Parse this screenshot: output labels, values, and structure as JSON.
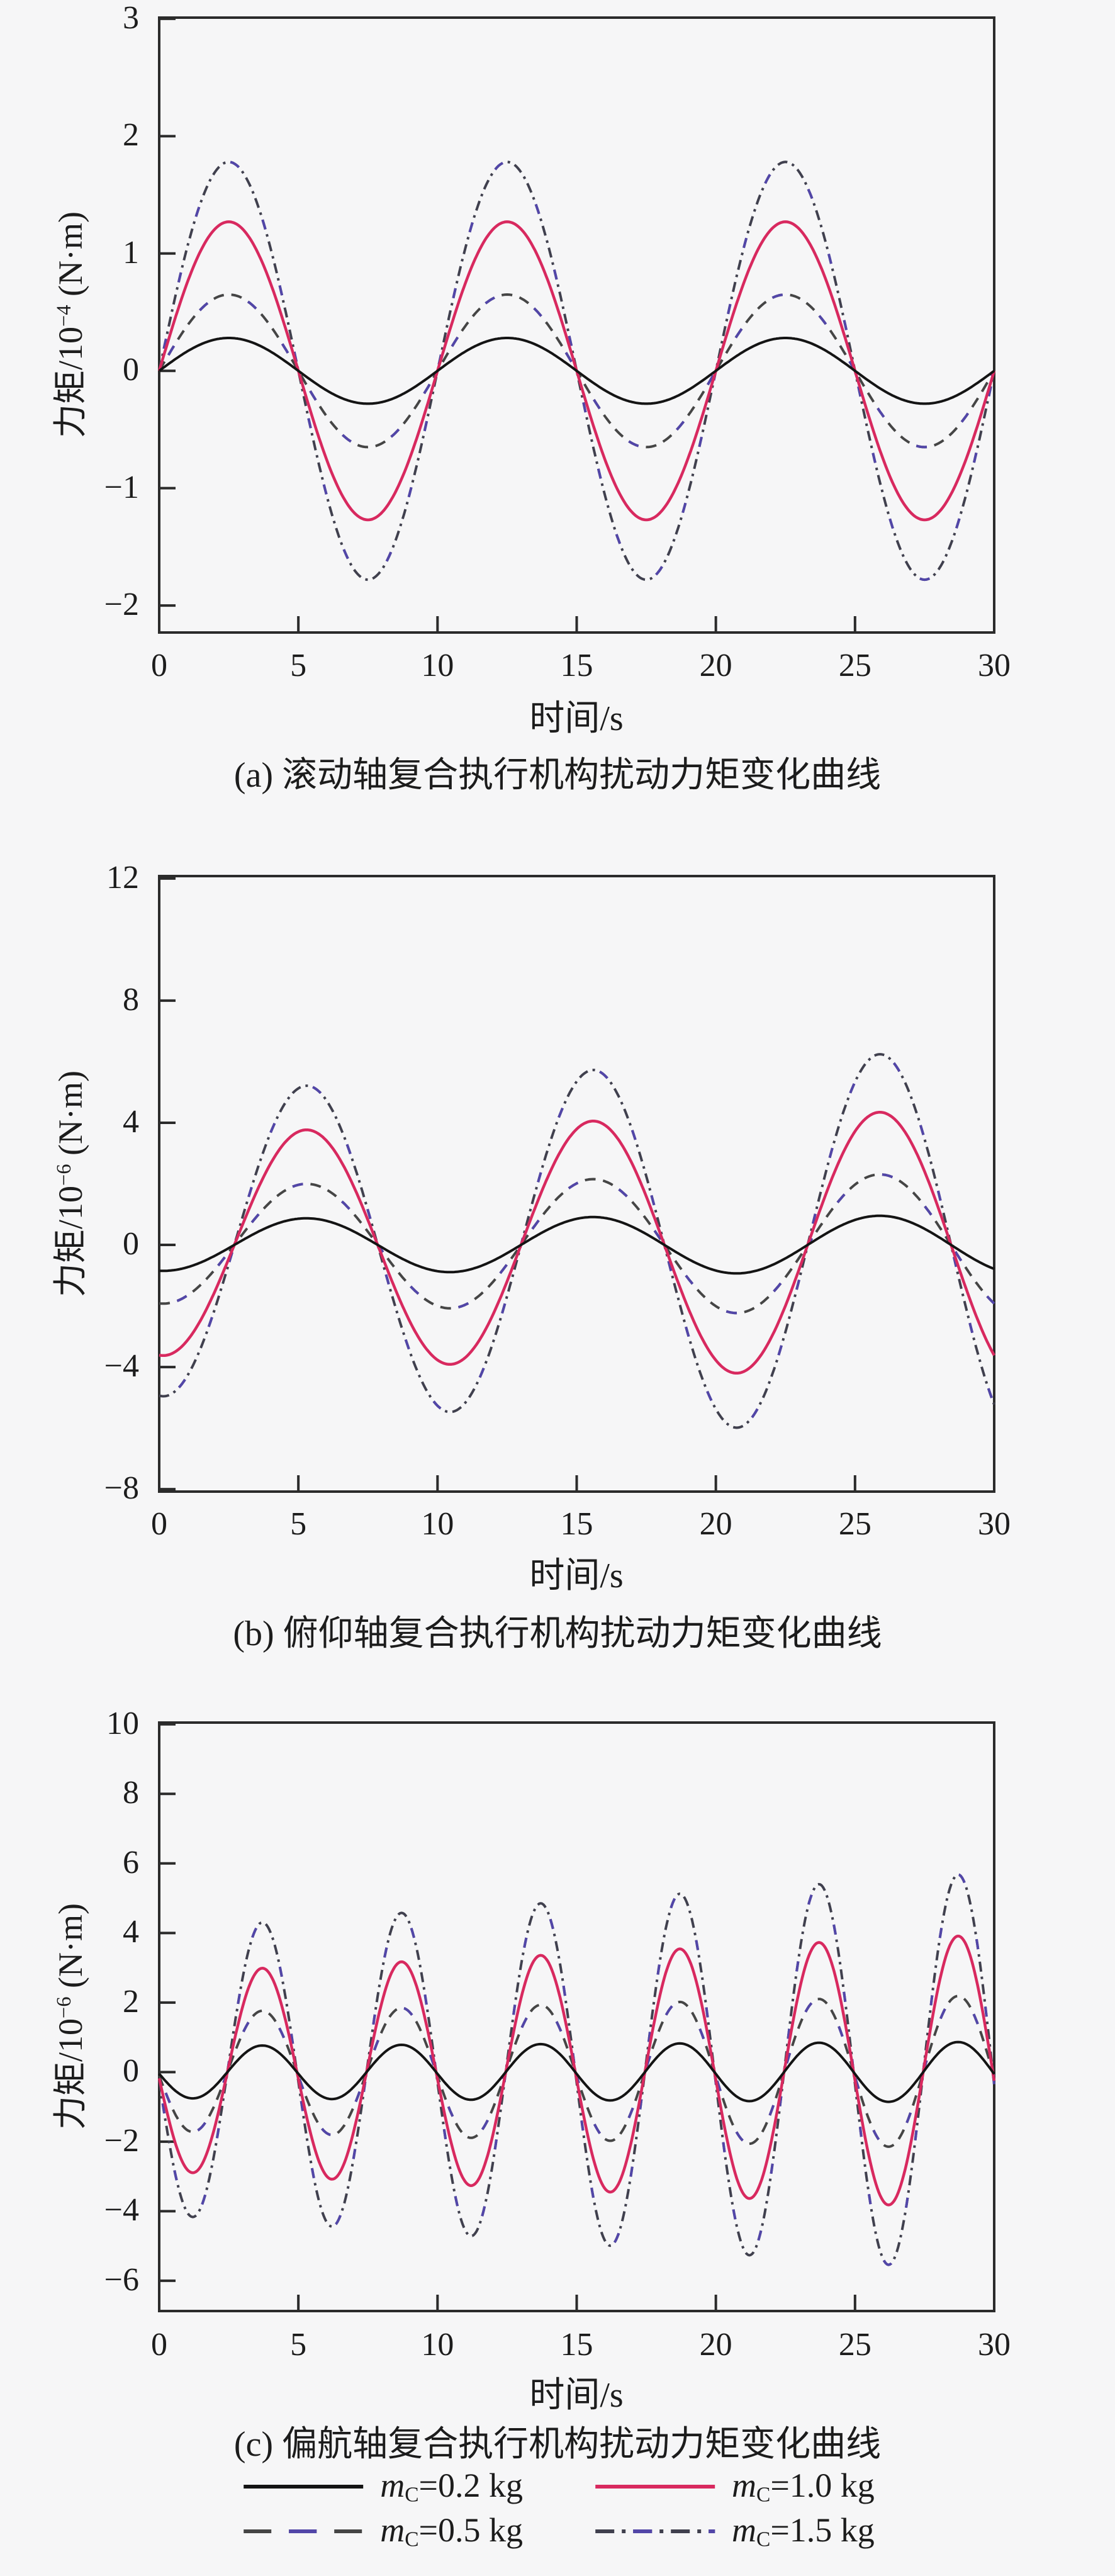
{
  "page": {
    "background": "#f6f6f7",
    "frame_color": "#2b2b2b",
    "text_color": "#1c1c1c"
  },
  "chart_data": [
    {
      "type": "line",
      "caption": "(a) 滚动轴复合执行机构扰动力矩变化曲线",
      "xlabel": "时间/s",
      "ylabel": {
        "base": "力矩/10",
        "exp": "−4",
        "unit": " (N·m)"
      },
      "xlim": [
        0,
        30
      ],
      "x_ticks": [
        0,
        5,
        10,
        15,
        20,
        25,
        30
      ],
      "y_ticks": [
        3,
        2,
        1,
        0,
        -1,
        -2
      ],
      "ylim": [
        -2.23,
        3.01
      ],
      "grid": false,
      "note": "sinusoidal disturbance torque, period 10 s, constant amplitude; y = A*sin(2*pi*(t-t0)/T)",
      "series": [
        {
          "name": "mC=0.2 kg",
          "style": "solid",
          "color": "#141414",
          "width": 4.0,
          "model": {
            "form": "sin",
            "sign": 1,
            "A0": 0.28,
            "k": 0,
            "T": 10,
            "t0": 0
          },
          "peak": 0.28,
          "trough": -0.28
        },
        {
          "name": "mC=0.5 kg",
          "style": "dashed",
          "color": "#454545",
          "accent": "#5246a8",
          "width": 4.0,
          "model": {
            "form": "sin",
            "sign": 1,
            "A0": 0.65,
            "k": 0,
            "T": 10,
            "t0": 0
          },
          "peak": 0.65,
          "trough": -0.65
        },
        {
          "name": "mC=1.0 kg",
          "style": "solid",
          "color": "#d8295f",
          "width": 4.5,
          "model": {
            "form": "sin",
            "sign": 1,
            "A0": 1.27,
            "k": 0,
            "T": 10,
            "t0": 0
          },
          "peak": 1.27,
          "trough": -1.27
        },
        {
          "name": "mC=1.5 kg",
          "style": "dashdot",
          "color": "#40404e",
          "accent": "#5246a8",
          "width": 4.0,
          "model": {
            "form": "sin",
            "sign": 1,
            "A0": 1.78,
            "k": 0,
            "T": 10,
            "t0": 0
          },
          "peak": 1.78,
          "trough": -1.78
        }
      ]
    },
    {
      "type": "line",
      "caption": "(b) 俯仰轴复合执行机构扰动力矩变化曲线",
      "xlabel": "时间/s",
      "ylabel": {
        "base": "力矩/10",
        "exp": "−6",
        "unit": " (N·m)"
      },
      "xlim": [
        0,
        30
      ],
      "x_ticks": [
        0,
        5,
        10,
        15,
        20,
        25,
        30
      ],
      "y_ticks": [
        12,
        8,
        4,
        0,
        -4,
        -8
      ],
      "ylim": [
        -8.08,
        12.08
      ],
      "grid": false,
      "note": "starts near minimum at t=0, peaks near t=5,15,25; amplitude grows slowly; y = -A(t)*cos(2*pi*(t-t0)/T), A(t)=A0+k*t",
      "series": [
        {
          "name": "mC=0.2 kg",
          "style": "solid",
          "color": "#141414",
          "width": 4.0,
          "model": {
            "form": "cos",
            "sign": -1,
            "A0": 0.85,
            "k": 0.004,
            "T": 10.3,
            "t0": 0.125
          },
          "peak": 0.9,
          "trough": -0.95
        },
        {
          "name": "mC=0.5 kg",
          "style": "dashed",
          "color": "#454545",
          "accent": "#5246a8",
          "width": 4.0,
          "model": {
            "form": "cos",
            "sign": -1,
            "A0": 1.92,
            "k": 0.015,
            "T": 10.3,
            "t0": 0.125
          },
          "peak": 2.2,
          "trough": -2.3
        },
        {
          "name": "mC=1.0 kg",
          "style": "solid",
          "color": "#d8295f",
          "width": 4.5,
          "model": {
            "form": "cos",
            "sign": -1,
            "A0": 3.62,
            "k": 0.028,
            "T": 10.3,
            "t0": 0.125
          },
          "peak": 4.3,
          "trough": -4.5
        },
        {
          "name": "mC=1.5 kg",
          "style": "dashdot",
          "color": "#40404e",
          "accent": "#5246a8",
          "width": 4.0,
          "model": {
            "form": "cos",
            "sign": -1,
            "A0": 4.95,
            "k": 0.05,
            "T": 10.3,
            "t0": 0.125
          },
          "peak": 6.3,
          "trough": -6.4
        }
      ]
    },
    {
      "type": "line",
      "caption": "(c) 偏航轴复合执行机构扰动力矩变化曲线",
      "xlabel": "时间/s",
      "ylabel": {
        "base": "力矩/10",
        "exp": "−6",
        "unit": " (N·m)"
      },
      "xlim": [
        0,
        30
      ],
      "x_ticks": [
        0,
        5,
        10,
        15,
        20,
        25,
        30
      ],
      "y_ticks": [
        10,
        8,
        6,
        4,
        2,
        0,
        -2,
        -4,
        -6
      ],
      "ylim": [
        -6.87,
        10.05
      ],
      "grid": false,
      "note": "period 5 s, dips first (trough ~t=1.2, peak ~t=3.7), amplitude grows slowly; y = -A(t)*sin(2*pi*(t-t0)/T), A(t)=A0+k*t",
      "series": [
        {
          "name": "mC=0.2 kg",
          "style": "solid",
          "color": "#141414",
          "width": 4.0,
          "model": {
            "form": "sin",
            "sign": -1,
            "A0": 0.75,
            "k": 0.004,
            "T": 5,
            "t0": -0.05
          },
          "peak": 0.85,
          "trough": -0.85
        },
        {
          "name": "mC=0.5 kg",
          "style": "dashed",
          "color": "#454545",
          "accent": "#5246a8",
          "width": 4.0,
          "model": {
            "form": "sin",
            "sign": -1,
            "A0": 1.7,
            "k": 0.017,
            "T": 5,
            "t0": -0.05
          },
          "peak": 2.2,
          "trough": -2.1
        },
        {
          "name": "mC=1.0 kg",
          "style": "solid",
          "color": "#d8295f",
          "width": 4.5,
          "model": {
            "form": "sin",
            "sign": -1,
            "A0": 2.85,
            "k": 0.037,
            "T": 5,
            "t0": -0.05
          },
          "peak": 3.9,
          "trough": -3.8
        },
        {
          "name": "mC=1.5 kg",
          "style": "dashdot",
          "color": "#40404e",
          "accent": "#5246a8",
          "width": 4.0,
          "model": {
            "form": "sin",
            "sign": -1,
            "A0": 4.1,
            "k": 0.055,
            "T": 5,
            "t0": -0.05
          },
          "peak": 5.7,
          "trough": -5.5
        }
      ]
    }
  ],
  "legend": {
    "items": [
      {
        "var": "m",
        "sub": "C",
        "rest": "=0.2 kg",
        "style": "solid",
        "color": "#141414"
      },
      {
        "var": "m",
        "sub": "C",
        "rest": "=1.0 kg",
        "style": "solid",
        "color": "#d8295f"
      },
      {
        "var": "m",
        "sub": "C",
        "rest": "=0.5 kg",
        "style": "dashed",
        "color": "#454545",
        "accent": "#5246a8"
      },
      {
        "var": "m",
        "sub": "C",
        "rest": "=1.5 kg",
        "style": "dashdot",
        "color": "#40404e",
        "accent": "#5246a8"
      }
    ]
  }
}
